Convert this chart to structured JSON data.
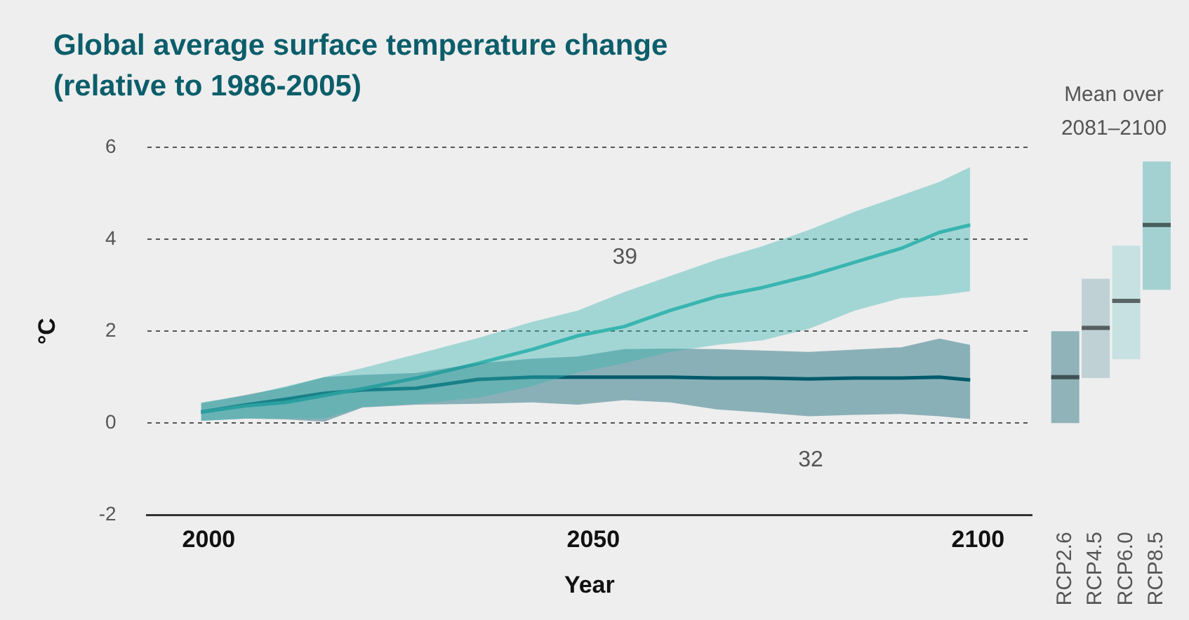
{
  "chart_data": [
    {
      "type": "line",
      "title": "Global average surface temperature change (relative to 1986-2005)",
      "xlabel": "Year",
      "ylabel": "°C",
      "x": [
        1999,
        2005,
        2010,
        2015,
        2020,
        2027,
        2035,
        2042,
        2048,
        2054,
        2060,
        2066,
        2072,
        2078,
        2084,
        2090,
        2095,
        2099
      ],
      "xlim": [
        1992,
        2107
      ],
      "xticks": [
        2000,
        2050,
        2100
      ],
      "ylim": [
        -2,
        6
      ],
      "yticks": [
        -2,
        0,
        2,
        4,
        6
      ],
      "grid": "y",
      "legend": false,
      "series": [
        {
          "color": "#3ab5b0",
          "values": [
            0.24,
            0.38,
            0.45,
            0.6,
            0.75,
            0.98,
            1.3,
            1.6,
            1.9,
            2.1,
            2.45,
            2.75,
            2.95,
            3.2,
            3.5,
            3.8,
            4.15,
            4.31
          ],
          "lower": [
            0.05,
            0.1,
            0.1,
            0.1,
            0.35,
            0.42,
            0.55,
            0.8,
            1.1,
            1.3,
            1.55,
            1.7,
            1.8,
            2.05,
            2.45,
            2.72,
            2.78,
            2.87
          ],
          "upper": [
            0.45,
            0.6,
            0.8,
            1.0,
            1.2,
            1.5,
            1.85,
            2.2,
            2.45,
            2.85,
            3.2,
            3.55,
            3.85,
            4.2,
            4.6,
            4.95,
            5.25,
            5.57
          ]
        },
        {
          "color": "#005b6b",
          "values": [
            0.24,
            0.4,
            0.52,
            0.65,
            0.72,
            0.76,
            0.95,
            1.0,
            1.0,
            1.0,
            1.0,
            0.98,
            0.98,
            0.96,
            0.98,
            0.98,
            1.0,
            0.94
          ],
          "lower": [
            0.05,
            0.1,
            0.08,
            0.03,
            0.34,
            0.4,
            0.42,
            0.45,
            0.4,
            0.5,
            0.45,
            0.3,
            0.23,
            0.15,
            0.18,
            0.2,
            0.15,
            0.09
          ],
          "upper": [
            0.43,
            0.62,
            0.78,
            1.0,
            1.05,
            1.09,
            1.3,
            1.4,
            1.45,
            1.61,
            1.62,
            1.61,
            1.58,
            1.55,
            1.6,
            1.65,
            1.84,
            1.7
          ]
        }
      ],
      "annotations": [
        "39",
        "32"
      ]
    },
    {
      "type": "box",
      "title": "Mean over 2081–2100",
      "categories": [
        "RCP2.6",
        "RCP4.5",
        "RCP6.0",
        "RCP8.5"
      ],
      "colors": [
        "#8fb3b8",
        "#bfd1d5",
        "#c7e1e2",
        "#a3d1d2"
      ],
      "ylim": [
        -2,
        6
      ],
      "tick_labels": "x",
      "boxes": [
        {
          "low": 0.0,
          "q1": 0.0,
          "median": 1.0,
          "q3": 2.0,
          "high": 2.0
        },
        {
          "low": 0.98,
          "q1": 0.98,
          "median": 2.07,
          "q3": 3.14,
          "high": 3.14
        },
        {
          "low": 1.39,
          "q1": 1.39,
          "median": 2.66,
          "q3": 3.86,
          "high": 3.86
        },
        {
          "low": 2.9,
          "q1": 2.9,
          "median": 4.31,
          "q3": 5.69,
          "high": 5.69
        }
      ]
    }
  ]
}
